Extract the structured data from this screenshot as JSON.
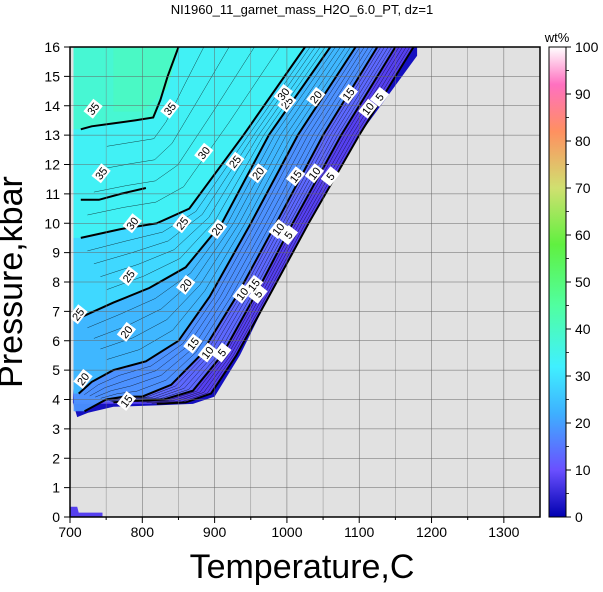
{
  "chart_data": {
    "type": "heatmap",
    "title": "NI1960_11_garnet_mass_H2O_6.0_PT, dz=1",
    "xlabel": "Temperature,C",
    "ylabel": "Pressure,kbar",
    "xlim": [
      700,
      1350
    ],
    "ylim": [
      0,
      16
    ],
    "x_ticks": [
      "700",
      "800",
      "900",
      "1000",
      "1100",
      "1200",
      "1300"
    ],
    "y_ticks": [
      "0",
      "1",
      "2",
      "3",
      "4",
      "5",
      "6",
      "7",
      "8",
      "9",
      "10",
      "11",
      "12",
      "13",
      "14",
      "15",
      "16"
    ],
    "grid": true,
    "background_color": "#e1e1e1",
    "colorbar": {
      "label": "wt%",
      "range": [
        0,
        100
      ],
      "ticks": [
        "0",
        "10",
        "20",
        "30",
        "40",
        "50",
        "60",
        "70",
        "80",
        "90",
        "100"
      ],
      "stops": [
        {
          "v": 0,
          "color": "#0000b0"
        },
        {
          "v": 10,
          "color": "#6a50ff"
        },
        {
          "v": 22,
          "color": "#3eb0ff"
        },
        {
          "v": 32,
          "color": "#40f0ff"
        },
        {
          "v": 45,
          "color": "#50ffa0"
        },
        {
          "v": 58,
          "color": "#60f040"
        },
        {
          "v": 70,
          "color": "#d0e070"
        },
        {
          "v": 82,
          "color": "#ff9060"
        },
        {
          "v": 92,
          "color": "#ff70c0"
        },
        {
          "v": 100,
          "color": "#ffffff"
        }
      ]
    },
    "contours": [
      {
        "level": 5,
        "points": [
          [
            1175,
            16
          ],
          [
            1100,
            13
          ],
          [
            1030,
            10
          ],
          [
            975,
            7.5
          ],
          [
            930,
            5.5
          ],
          [
            895,
            4.2
          ],
          [
            860,
            3.9
          ],
          [
            820,
            3.85
          ]
        ],
        "labels": [
          {
            "text": "5",
            "x": 1128,
            "y": 14.3
          },
          {
            "text": "5",
            "x": 1060,
            "y": 11.6
          },
          {
            "text": "5",
            "x": 1002,
            "y": 9.6
          },
          {
            "text": "5",
            "x": 960,
            "y": 7.6
          },
          {
            "text": "5",
            "x": 910,
            "y": 5.6
          }
        ]
      },
      {
        "level": 10,
        "points": [
          [
            1150,
            16
          ],
          [
            1075,
            13
          ],
          [
            1008,
            10
          ],
          [
            955,
            7.5
          ],
          [
            910,
            5.5
          ],
          [
            870,
            4.3
          ],
          [
            830,
            4.0
          ],
          [
            785,
            3.95
          ],
          [
            760,
            3.9
          ]
        ],
        "labels": [
          {
            "text": "10",
            "x": 1112,
            "y": 13.9
          },
          {
            "text": "10",
            "x": 1038,
            "y": 11.7
          },
          {
            "text": "10",
            "x": 988,
            "y": 9.8
          },
          {
            "text": "10",
            "x": 938,
            "y": 7.6
          },
          {
            "text": "10",
            "x": 890,
            "y": 5.6
          }
        ]
      },
      {
        "level": 15,
        "points": [
          [
            1125,
            16
          ],
          [
            1050,
            13
          ],
          [
            985,
            10
          ],
          [
            930,
            7.5
          ],
          [
            880,
            5.5
          ],
          [
            840,
            4.5
          ],
          [
            800,
            4.1
          ],
          [
            775,
            4.1
          ],
          [
            750,
            4.0
          ],
          [
            720,
            3.6
          ]
        ],
        "labels": [
          {
            "text": "15",
            "x": 1085,
            "y": 14.4
          },
          {
            "text": "15",
            "x": 1012,
            "y": 11.6
          },
          {
            "text": "15",
            "x": 954,
            "y": 7.9
          },
          {
            "text": "15",
            "x": 870,
            "y": 5.9
          },
          {
            "text": "15",
            "x": 778,
            "y": 3.95
          }
        ]
      },
      {
        "level": 20,
        "points": [
          [
            1095,
            16
          ],
          [
            1015,
            13
          ],
          [
            950,
            10
          ],
          [
            893,
            7.5
          ],
          [
            850,
            6.0
          ],
          [
            805,
            5.3
          ],
          [
            760,
            5.0
          ],
          [
            730,
            4.6
          ],
          [
            712,
            4.2
          ]
        ],
        "labels": [
          {
            "text": "20",
            "x": 1040,
            "y": 14.3
          },
          {
            "text": "20",
            "x": 960,
            "y": 11.7
          },
          {
            "text": "20",
            "x": 904,
            "y": 9.8
          },
          {
            "text": "20",
            "x": 860,
            "y": 7.9
          },
          {
            "text": "20",
            "x": 778,
            "y": 6.3
          },
          {
            "text": "20",
            "x": 718,
            "y": 4.7
          }
        ]
      },
      {
        "level": 25,
        "points": [
          [
            1060,
            16
          ],
          [
            975,
            13
          ],
          [
            910,
            10
          ],
          [
            860,
            8.5
          ],
          [
            810,
            7.8
          ],
          [
            760,
            7.3
          ],
          [
            715,
            6.8
          ]
        ],
        "labels": [
          {
            "text": "25",
            "x": 1000,
            "y": 14.1
          },
          {
            "text": "25",
            "x": 928,
            "y": 12.1
          },
          {
            "text": "25",
            "x": 855,
            "y": 10.0
          },
          {
            "text": "25",
            "x": 781,
            "y": 8.2
          },
          {
            "text": "25",
            "x": 711,
            "y": 6.9
          }
        ]
      },
      {
        "level": 30,
        "points": [
          [
            1025,
            16
          ],
          [
            940,
            13
          ],
          [
            865,
            10.5
          ],
          [
            820,
            10.0
          ],
          [
            770,
            9.8
          ],
          [
            715,
            9.5
          ]
        ],
        "labels": [
          {
            "text": "30",
            "x": 995,
            "y": 14.4
          },
          {
            "text": "30",
            "x": 885,
            "y": 12.4
          },
          {
            "text": "30",
            "x": 786,
            "y": 10.0
          }
        ]
      },
      {
        "level": 35,
        "points": [
          [
            850,
            16
          ],
          [
            835,
            15
          ],
          [
            825,
            14.2
          ],
          [
            815,
            13.6
          ],
          [
            790,
            13.5
          ],
          [
            760,
            13.4
          ],
          [
            730,
            13.3
          ],
          [
            715,
            13.2
          ]
        ],
        "labels": [
          {
            "text": "35",
            "x": 838,
            "y": 13.9
          },
          {
            "text": "35",
            "x": 743,
            "y": 11.7
          },
          {
            "text": "35",
            "x": 732,
            "y": 13.9
          }
        ]
      },
      {
        "level": 35,
        "points": [
          [
            805,
            11.2
          ],
          [
            770,
            11.0
          ],
          [
            740,
            10.8
          ],
          [
            715,
            10.8
          ]
        ],
        "labels": []
      }
    ],
    "region_boundary": {
      "right_edge": [
        [
          1180,
          16
        ],
        [
          1180,
          15.7
        ],
        [
          1100,
          13
        ],
        [
          1030,
          10
        ],
        [
          975,
          7.5
        ],
        [
          935,
          5.5
        ],
        [
          900,
          4.1
        ],
        [
          870,
          3.85
        ],
        [
          820,
          3.8
        ],
        [
          760,
          3.75
        ],
        [
          725,
          3.55
        ],
        [
          710,
          3.4
        ]
      ],
      "left_edge_low": [
        [
          710,
          3.4
        ],
        [
          704,
          3.9
        ],
        [
          706,
          5.0
        ],
        [
          708,
          6.5
        ],
        [
          707,
          8
        ],
        [
          708,
          10
        ],
        [
          706,
          12
        ],
        [
          707,
          14
        ],
        [
          712,
          15.5
        ],
        [
          707,
          16
        ]
      ],
      "noise_patch": [
        [
          700,
          0.35
        ],
        [
          710,
          0.35
        ],
        [
          712,
          0.15
        ],
        [
          745,
          0.15
        ],
        [
          745,
          0
        ],
        [
          700,
          0
        ]
      ]
    }
  }
}
